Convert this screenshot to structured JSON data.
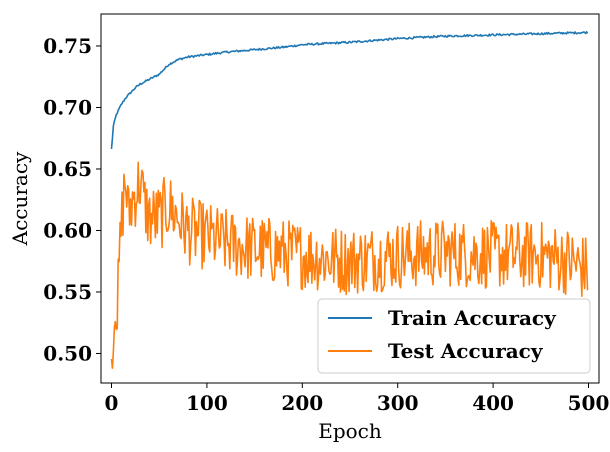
{
  "chart_data": {
    "type": "line",
    "title": "",
    "xlabel": "Epoch",
    "ylabel": "Accuracy",
    "xlim": [
      -11,
      511
    ],
    "ylim": [
      0.476,
      0.776
    ],
    "xticks": [
      0,
      100,
      200,
      300,
      400,
      500
    ],
    "xtick_labels": [
      "0",
      "100",
      "200",
      "300",
      "400",
      "500"
    ],
    "yticks": [
      0.5,
      0.55,
      0.6,
      0.65,
      0.7,
      0.75
    ],
    "ytick_labels": [
      "0.50",
      "0.55",
      "0.60",
      "0.65",
      "0.70",
      "0.75"
    ],
    "grid": false,
    "legend_position": "lower-right",
    "series": [
      {
        "name": "Train Accuracy",
        "color": "#1f77b4",
        "noise": 0.0008,
        "x": [
          0,
          2,
          5,
          10,
          15,
          20,
          25,
          30,
          40,
          50,
          60,
          70,
          80,
          100,
          120,
          150,
          180,
          200,
          250,
          300,
          350,
          400,
          450,
          499
        ],
        "y": [
          0.666,
          0.685,
          0.694,
          0.702,
          0.708,
          0.712,
          0.716,
          0.719,
          0.723,
          0.727,
          0.735,
          0.739,
          0.741,
          0.743,
          0.745,
          0.747,
          0.749,
          0.751,
          0.753,
          0.756,
          0.758,
          0.759,
          0.76,
          0.761
        ]
      },
      {
        "name": "Test Accuracy",
        "color": "#ff7f0e",
        "noise": 0.028,
        "x": [
          0,
          2,
          4,
          6,
          8,
          10,
          12,
          14,
          16,
          18,
          20,
          25,
          30,
          35,
          40,
          50,
          60,
          70,
          80,
          100,
          120,
          150,
          200,
          250,
          300,
          350,
          400,
          450,
          480,
          499
        ],
        "y": [
          0.49,
          0.51,
          0.55,
          0.53,
          0.57,
          0.6,
          0.62,
          0.64,
          0.63,
          0.61,
          0.62,
          0.63,
          0.64,
          0.62,
          0.61,
          0.61,
          0.62,
          0.61,
          0.6,
          0.595,
          0.59,
          0.585,
          0.58,
          0.575,
          0.58,
          0.582,
          0.58,
          0.58,
          0.575,
          0.568
        ]
      }
    ]
  }
}
